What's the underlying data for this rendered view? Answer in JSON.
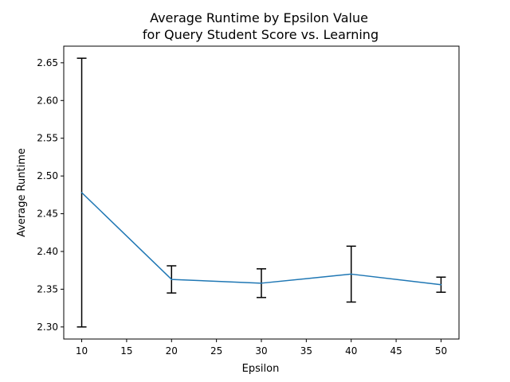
{
  "chart_data": {
    "type": "line",
    "title": [
      "Average Runtime by Epsilon Value",
      "for Query Student Score vs. Learning"
    ],
    "xlabel": "Epsilon",
    "ylabel": "Average Runtime",
    "xlim": [
      8.0,
      52.0
    ],
    "ylim": [
      2.284,
      2.672
    ],
    "xticks": [
      10,
      15,
      20,
      25,
      30,
      35,
      40,
      45,
      50
    ],
    "yticks": [
      2.3,
      2.35,
      2.4,
      2.45,
      2.5,
      2.55,
      2.6,
      2.65
    ],
    "grid": false,
    "legend": "none",
    "series": [
      {
        "x": [
          10,
          20,
          30,
          40,
          50
        ],
        "y": [
          2.478,
          2.363,
          2.358,
          2.37,
          2.356
        ],
        "error": [
          0.178,
          0.018,
          0.019,
          0.037,
          0.01
        ],
        "line_color": "#1f77b4",
        "error_color": "#000000"
      }
    ]
  }
}
